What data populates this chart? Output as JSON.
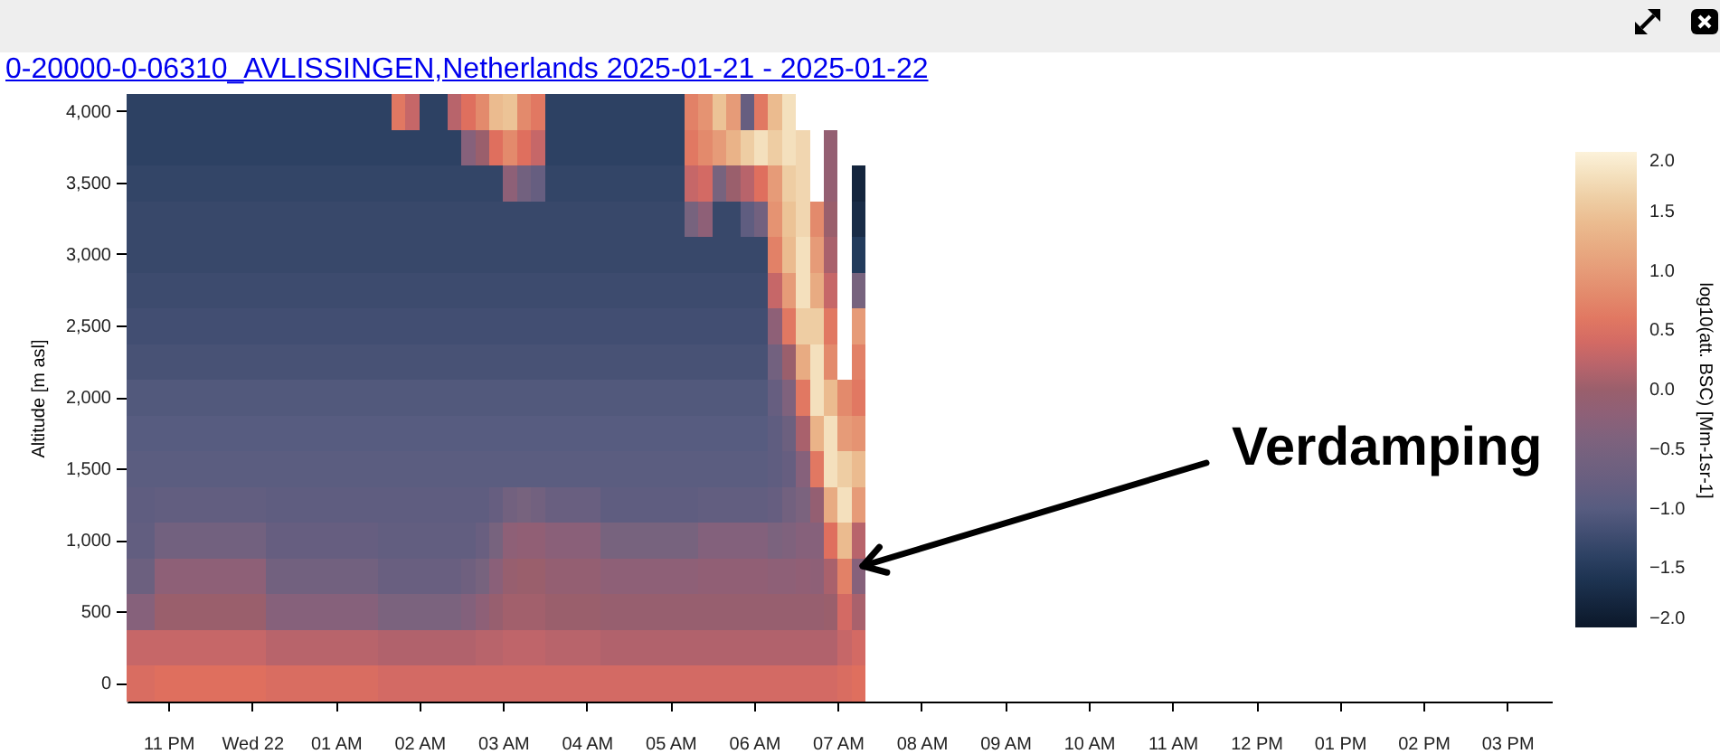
{
  "chart_data": {
    "type": "heatmap",
    "title": "0-20000-0-06310_AVLISSINGEN,Netherlands 2025-01-21 - 2025-01-22",
    "ylabel": "Altitude [m asl]",
    "clabel": "log10(att. BSC) [Mm-1sr-1]",
    "annotations": [
      "Verdamping"
    ],
    "x": [
      "2025-01-21T22:35",
      "2025-01-21T22:45",
      "2025-01-21T22:55",
      "2025-01-21T23:05",
      "2025-01-21T23:15",
      "2025-01-21T23:25",
      "2025-01-21T23:35",
      "2025-01-21T23:45",
      "2025-01-21T23:55",
      "2025-01-22T00:05",
      "2025-01-22T00:15",
      "2025-01-22T00:25",
      "2025-01-22T00:35",
      "2025-01-22T00:45",
      "2025-01-22T00:55",
      "2025-01-22T01:05",
      "2025-01-22T01:15",
      "2025-01-22T01:25",
      "2025-01-22T01:35",
      "2025-01-22T01:45",
      "2025-01-22T01:55",
      "2025-01-22T02:05",
      "2025-01-22T02:15",
      "2025-01-22T02:25",
      "2025-01-22T02:35",
      "2025-01-22T02:45",
      "2025-01-22T02:55",
      "2025-01-22T03:05",
      "2025-01-22T03:15",
      "2025-01-22T03:25",
      "2025-01-22T03:35",
      "2025-01-22T03:45",
      "2025-01-22T03:55",
      "2025-01-22T04:05",
      "2025-01-22T04:15",
      "2025-01-22T04:25",
      "2025-01-22T04:35",
      "2025-01-22T04:45",
      "2025-01-22T04:55",
      "2025-01-22T05:05",
      "2025-01-22T05:15",
      "2025-01-22T05:25",
      "2025-01-22T05:35",
      "2025-01-22T05:45",
      "2025-01-22T05:55",
      "2025-01-22T06:05",
      "2025-01-22T06:15",
      "2025-01-22T06:25",
      "2025-01-22T06:35",
      "2025-01-22T06:45",
      "2025-01-22T06:55",
      "2025-01-22T07:05",
      "2025-01-22T07:15"
    ],
    "y_categories": [
      "4,000",
      null,
      "3,500",
      null,
      "3,000",
      null,
      "2,500",
      null,
      "2,000",
      null,
      "1,500",
      null,
      "1,000",
      null,
      "500",
      null,
      "0"
    ],
    "cells": [
      [
        -1.4,
        -1.4,
        -1.4,
        -1.4,
        -1.4,
        -1.4,
        -1.4,
        -1.4,
        -1.4,
        -1.4,
        -1.4,
        -1.4,
        -1.4,
        -1.4,
        -1.4,
        -1.4,
        -1.4,
        -1.4,
        -1.4,
        0.6,
        0.3,
        -1.4,
        -1.4,
        0.2,
        0.5,
        0.8,
        1.4,
        1.5,
        0.8,
        0.6,
        -1.4,
        -1.4,
        -1.4,
        -1.4,
        -1.4,
        -1.4,
        -1.4,
        -1.4,
        -1.4,
        -1.4,
        0.7,
        0.9,
        1.5,
        1.0,
        -0.8,
        0.6,
        1.4,
        1.8,
        null,
        null,
        null,
        null,
        null
      ],
      [
        -1.4,
        -1.4,
        -1.4,
        -1.4,
        -1.4,
        -1.4,
        -1.4,
        -1.4,
        -1.4,
        -1.4,
        -1.4,
        -1.4,
        -1.4,
        -1.4,
        -1.4,
        -1.4,
        -1.4,
        -1.4,
        -1.4,
        -1.4,
        -1.4,
        -1.4,
        -1.4,
        -1.4,
        -0.3,
        0.0,
        0.5,
        0.8,
        0.5,
        0.3,
        -1.4,
        -1.4,
        -1.4,
        -1.4,
        -1.4,
        -1.4,
        -1.4,
        -1.4,
        -1.4,
        -1.4,
        0.6,
        0.8,
        1.0,
        1.3,
        1.6,
        1.8,
        1.6,
        1.8,
        1.7,
        null,
        -0.1,
        null,
        null
      ],
      [
        -1.35,
        -1.35,
        -1.35,
        -1.35,
        -1.35,
        -1.35,
        -1.35,
        -1.35,
        -1.35,
        -1.35,
        -1.35,
        -1.35,
        -1.35,
        -1.35,
        -1.35,
        -1.35,
        -1.35,
        -1.35,
        -1.35,
        -1.35,
        -1.35,
        -1.35,
        -1.35,
        -1.35,
        -1.35,
        -1.35,
        -1.35,
        -0.2,
        -0.6,
        -0.8,
        -1.35,
        -1.35,
        -1.35,
        -1.35,
        -1.35,
        -1.35,
        -1.35,
        -1.35,
        -1.35,
        -1.35,
        0.3,
        0.4,
        -0.5,
        0.0,
        0.2,
        0.5,
        1.0,
        1.6,
        1.7,
        null,
        -0.1,
        null,
        -1.8
      ],
      [
        -1.3,
        -1.3,
        -1.3,
        -1.3,
        -1.3,
        -1.3,
        -1.3,
        -1.3,
        -1.3,
        -1.3,
        -1.3,
        -1.3,
        -1.3,
        -1.3,
        -1.3,
        -1.3,
        -1.3,
        -1.3,
        -1.3,
        -1.3,
        -1.3,
        -1.3,
        -1.3,
        -1.3,
        -1.3,
        -1.3,
        -1.3,
        -1.3,
        -1.3,
        -1.3,
        -1.3,
        -1.3,
        -1.3,
        -1.3,
        -1.3,
        -1.3,
        -1.3,
        -1.3,
        -1.3,
        -1.3,
        -0.5,
        -0.2,
        -1.3,
        -1.3,
        -0.9,
        -0.6,
        0.9,
        1.5,
        1.7,
        0.8,
        0.0,
        null,
        -1.7
      ],
      [
        -1.3,
        -1.3,
        -1.3,
        -1.3,
        -1.3,
        -1.3,
        -1.3,
        -1.3,
        -1.3,
        -1.3,
        -1.3,
        -1.3,
        -1.3,
        -1.3,
        -1.3,
        -1.3,
        -1.3,
        -1.3,
        -1.3,
        -1.3,
        -1.3,
        -1.3,
        -1.3,
        -1.3,
        -1.3,
        -1.3,
        -1.3,
        -1.3,
        -1.3,
        -1.3,
        -1.3,
        -1.3,
        -1.3,
        -1.3,
        -1.3,
        -1.3,
        -1.3,
        -1.3,
        -1.3,
        -1.3,
        -1.3,
        -1.3,
        -1.3,
        -1.3,
        -1.3,
        -1.3,
        0.7,
        1.4,
        1.8,
        1.0,
        0.1,
        null,
        -1.5
      ],
      [
        -1.25,
        -1.25,
        -1.25,
        -1.25,
        -1.25,
        -1.25,
        -1.25,
        -1.25,
        -1.25,
        -1.25,
        -1.25,
        -1.25,
        -1.25,
        -1.25,
        -1.25,
        -1.25,
        -1.25,
        -1.25,
        -1.25,
        -1.25,
        -1.25,
        -1.25,
        -1.25,
        -1.25,
        -1.25,
        -1.25,
        -1.25,
        -1.25,
        -1.25,
        -1.25,
        -1.25,
        -1.25,
        -1.25,
        -1.25,
        -1.25,
        -1.25,
        -1.25,
        -1.25,
        -1.25,
        -1.25,
        -1.25,
        -1.25,
        -1.25,
        -1.25,
        -1.25,
        -1.25,
        0.3,
        1.0,
        1.8,
        1.2,
        0.3,
        null,
        -0.5
      ],
      [
        -1.2,
        -1.2,
        -1.2,
        -1.2,
        -1.2,
        -1.2,
        -1.2,
        -1.2,
        -1.2,
        -1.2,
        -1.2,
        -1.2,
        -1.2,
        -1.2,
        -1.2,
        -1.2,
        -1.2,
        -1.2,
        -1.2,
        -1.2,
        -1.2,
        -1.2,
        -1.2,
        -1.2,
        -1.2,
        -1.2,
        -1.2,
        -1.2,
        -1.2,
        -1.2,
        -1.2,
        -1.2,
        -1.2,
        -1.2,
        -1.2,
        -1.2,
        -1.2,
        -1.2,
        -1.2,
        -1.2,
        -1.2,
        -1.2,
        -1.2,
        -1.2,
        -1.2,
        -1.2,
        -0.2,
        0.6,
        1.6,
        1.6,
        0.6,
        null,
        1.0
      ],
      [
        -1.15,
        -1.15,
        -1.15,
        -1.15,
        -1.15,
        -1.15,
        -1.15,
        -1.15,
        -1.15,
        -1.15,
        -1.15,
        -1.15,
        -1.15,
        -1.15,
        -1.15,
        -1.15,
        -1.15,
        -1.15,
        -1.15,
        -1.15,
        -1.15,
        -1.15,
        -1.15,
        -1.15,
        -1.15,
        -1.15,
        -1.15,
        -1.15,
        -1.15,
        -1.15,
        -1.15,
        -1.15,
        -1.15,
        -1.15,
        -1.15,
        -1.15,
        -1.15,
        -1.15,
        -1.15,
        -1.15,
        -1.15,
        -1.15,
        -1.15,
        -1.15,
        -1.15,
        -1.15,
        -0.6,
        0.0,
        1.2,
        1.8,
        0.8,
        null,
        0.7
      ],
      [
        -1.05,
        -1.05,
        -1.05,
        -1.05,
        -1.05,
        -1.05,
        -1.05,
        -1.05,
        -1.05,
        -1.05,
        -1.05,
        -1.05,
        -1.05,
        -1.05,
        -1.05,
        -1.05,
        -1.05,
        -1.05,
        -1.05,
        -1.05,
        -1.05,
        -1.05,
        -1.05,
        -1.05,
        -1.05,
        -1.05,
        -1.05,
        -1.05,
        -1.05,
        -1.05,
        -1.05,
        -1.05,
        -1.05,
        -1.05,
        -1.05,
        -1.05,
        -1.05,
        -1.05,
        -1.05,
        -1.05,
        -1.05,
        -1.05,
        -1.05,
        -1.05,
        -1.05,
        -1.05,
        -0.8,
        -0.4,
        0.6,
        1.8,
        1.4,
        0.8,
        0.6
      ],
      [
        -1.0,
        -1.0,
        -1.0,
        -1.0,
        -1.0,
        -1.0,
        -1.0,
        -1.0,
        -1.0,
        -1.0,
        -1.0,
        -1.0,
        -1.0,
        -1.0,
        -1.0,
        -1.0,
        -1.0,
        -1.0,
        -1.0,
        -1.0,
        -1.0,
        -1.0,
        -1.0,
        -1.0,
        -1.0,
        -1.0,
        -1.0,
        -1.0,
        -1.0,
        -1.0,
        -1.0,
        -1.0,
        -1.0,
        -1.0,
        -1.0,
        -1.0,
        -1.0,
        -1.0,
        -1.0,
        -1.0,
        -1.0,
        -1.0,
        -1.0,
        -1.0,
        -1.0,
        -1.0,
        -0.9,
        -0.7,
        0.1,
        1.3,
        1.8,
        1.0,
        0.9
      ],
      [
        -0.95,
        -0.95,
        -0.95,
        -0.95,
        -0.95,
        -0.95,
        -0.95,
        -0.95,
        -0.95,
        -0.95,
        -0.95,
        -0.95,
        -0.95,
        -0.95,
        -0.95,
        -0.95,
        -0.95,
        -0.95,
        -0.95,
        -0.95,
        -0.95,
        -0.95,
        -0.95,
        -0.95,
        -0.95,
        -0.95,
        -0.95,
        -0.95,
        -0.95,
        -0.95,
        -0.95,
        -0.95,
        -0.95,
        -0.95,
        -0.95,
        -0.95,
        -0.95,
        -0.95,
        -0.95,
        -0.95,
        -0.95,
        -0.95,
        -0.95,
        -0.95,
        -0.95,
        -0.95,
        -0.9,
        -0.8,
        -0.3,
        0.6,
        1.8,
        1.6,
        1.4
      ],
      [
        -0.9,
        -0.9,
        -0.85,
        -0.85,
        -0.85,
        -0.85,
        -0.85,
        -0.85,
        -0.85,
        -0.85,
        -0.9,
        -0.9,
        -0.9,
        -0.9,
        -0.9,
        -0.9,
        -0.9,
        -0.9,
        -0.9,
        -0.9,
        -0.9,
        -0.9,
        -0.9,
        -0.9,
        -0.9,
        -0.9,
        -0.8,
        -0.6,
        -0.5,
        -0.6,
        -0.75,
        -0.75,
        -0.75,
        -0.75,
        -0.9,
        -0.9,
        -0.9,
        -0.9,
        -0.9,
        -0.9,
        -0.9,
        -0.85,
        -0.85,
        -0.85,
        -0.85,
        -0.85,
        -0.8,
        -0.6,
        -0.45,
        -0.1,
        1.2,
        1.8,
        1.0
      ],
      [
        -0.85,
        -0.85,
        -0.6,
        -0.6,
        -0.6,
        -0.6,
        -0.6,
        -0.6,
        -0.6,
        -0.6,
        -0.8,
        -0.8,
        -0.8,
        -0.8,
        -0.8,
        -0.8,
        -0.8,
        -0.8,
        -0.85,
        -0.85,
        -0.85,
        -0.85,
        -0.85,
        -0.85,
        -0.85,
        -0.75,
        -0.5,
        -0.2,
        -0.15,
        -0.15,
        -0.25,
        -0.25,
        -0.25,
        -0.25,
        -0.5,
        -0.5,
        -0.5,
        -0.5,
        -0.5,
        -0.5,
        -0.5,
        -0.35,
        -0.35,
        -0.35,
        -0.35,
        -0.35,
        -0.45,
        -0.4,
        -0.3,
        -0.3,
        0.5,
        1.4,
        0.2
      ],
      [
        -0.7,
        -0.7,
        -0.2,
        -0.2,
        -0.2,
        -0.2,
        -0.2,
        -0.2,
        -0.2,
        -0.2,
        -0.6,
        -0.6,
        -0.6,
        -0.6,
        -0.6,
        -0.6,
        -0.6,
        -0.6,
        -0.75,
        -0.75,
        -0.75,
        -0.75,
        -0.75,
        -0.75,
        -0.65,
        -0.5,
        -0.25,
        -0.05,
        0.0,
        0.0,
        -0.1,
        -0.1,
        -0.1,
        -0.1,
        -0.2,
        -0.2,
        -0.2,
        -0.2,
        -0.2,
        -0.2,
        -0.2,
        -0.15,
        -0.15,
        -0.15,
        -0.15,
        -0.15,
        -0.2,
        -0.2,
        -0.15,
        -0.2,
        0.1,
        0.7,
        -0.3
      ],
      [
        -0.3,
        -0.3,
        0.0,
        0.0,
        0.0,
        0.0,
        0.0,
        0.0,
        0.0,
        0.0,
        -0.3,
        -0.3,
        -0.3,
        -0.3,
        -0.3,
        -0.3,
        -0.3,
        -0.3,
        -0.45,
        -0.45,
        -0.45,
        -0.45,
        -0.45,
        -0.45,
        -0.35,
        -0.2,
        -0.05,
        0.05,
        0.05,
        0.05,
        0.0,
        0.0,
        0.0,
        0.0,
        -0.05,
        -0.05,
        -0.05,
        -0.05,
        -0.05,
        -0.05,
        -0.05,
        -0.05,
        -0.05,
        -0.05,
        -0.05,
        -0.05,
        -0.05,
        -0.05,
        -0.05,
        -0.05,
        0.0,
        0.4,
        0.1
      ],
      [
        0.3,
        0.3,
        0.3,
        0.3,
        0.3,
        0.3,
        0.3,
        0.3,
        0.3,
        0.3,
        0.2,
        0.2,
        0.2,
        0.2,
        0.2,
        0.2,
        0.2,
        0.2,
        0.15,
        0.15,
        0.15,
        0.15,
        0.15,
        0.15,
        0.15,
        0.2,
        0.2,
        0.25,
        0.25,
        0.25,
        0.2,
        0.2,
        0.2,
        0.2,
        0.15,
        0.15,
        0.15,
        0.15,
        0.15,
        0.15,
        0.15,
        0.15,
        0.15,
        0.15,
        0.15,
        0.15,
        0.15,
        0.15,
        0.15,
        0.15,
        0.15,
        0.3,
        0.4
      ],
      [
        0.45,
        0.45,
        0.5,
        0.5,
        0.5,
        0.5,
        0.5,
        0.5,
        0.5,
        0.5,
        0.45,
        0.45,
        0.45,
        0.45,
        0.45,
        0.45,
        0.45,
        0.45,
        0.4,
        0.4,
        0.4,
        0.4,
        0.4,
        0.4,
        0.4,
        0.4,
        0.4,
        0.4,
        0.4,
        0.4,
        0.4,
        0.4,
        0.4,
        0.4,
        0.4,
        0.4,
        0.4,
        0.4,
        0.4,
        0.4,
        0.4,
        0.4,
        0.4,
        0.4,
        0.4,
        0.4,
        0.4,
        0.4,
        0.4,
        0.4,
        0.4,
        0.45,
        0.5
      ]
    ],
    "clim": [
      -2,
      2
    ],
    "cticks": [
      {
        "value": -2,
        "label": "−2.0"
      },
      {
        "value": -1.5,
        "label": "−1.5"
      },
      {
        "value": -1,
        "label": "−1.0"
      },
      {
        "value": -0.5,
        "label": "−0.5"
      },
      {
        "value": 0,
        "label": "0.0"
      },
      0.5,
      {
        "value": 1,
        "label": "1.0"
      },
      1.5,
      {
        "value": 2,
        "label": "2.0"
      }
    ],
    "xlim": [
      "2025-01-21T22:30",
      "2025-01-22T15:32"
    ],
    "xticks": [
      {
        "value": "2025-01-21T23:00",
        "label": "11 PM"
      },
      {
        "value": "2025-01-22T00:00",
        "label": "Wed 22"
      },
      {
        "value": "2025-01-22T01:00",
        "label": "01 AM"
      },
      {
        "value": "2025-01-22T02:00",
        "label": "02 AM"
      },
      {
        "value": "2025-01-22T03:00",
        "label": "03 AM"
      },
      {
        "value": "2025-01-22T04:00",
        "label": "04 AM"
      },
      {
        "value": "2025-01-22T05:00",
        "label": "05 AM"
      },
      {
        "value": "2025-01-22T06:00",
        "label": "06 AM"
      },
      {
        "value": "2025-01-22T07:00",
        "label": "07 AM"
      },
      {
        "value": "2025-01-22T08:00",
        "label": "08 AM"
      },
      {
        "value": "2025-01-22T09:00",
        "label": "09 AM"
      },
      {
        "value": "2025-01-22T10:00",
        "label": "10 AM"
      },
      {
        "value": "2025-01-22T11:00",
        "label": "11 AM"
      },
      {
        "value": "2025-01-22T12:00",
        "label": "12 PM"
      },
      {
        "value": "2025-01-22T13:00",
        "label": "01 PM"
      },
      {
        "value": "2025-01-22T14:00",
        "label": "02 PM"
      },
      {
        "value": "2025-01-22T15:00",
        "label": "03 PM"
      }
    ]
  }
}
